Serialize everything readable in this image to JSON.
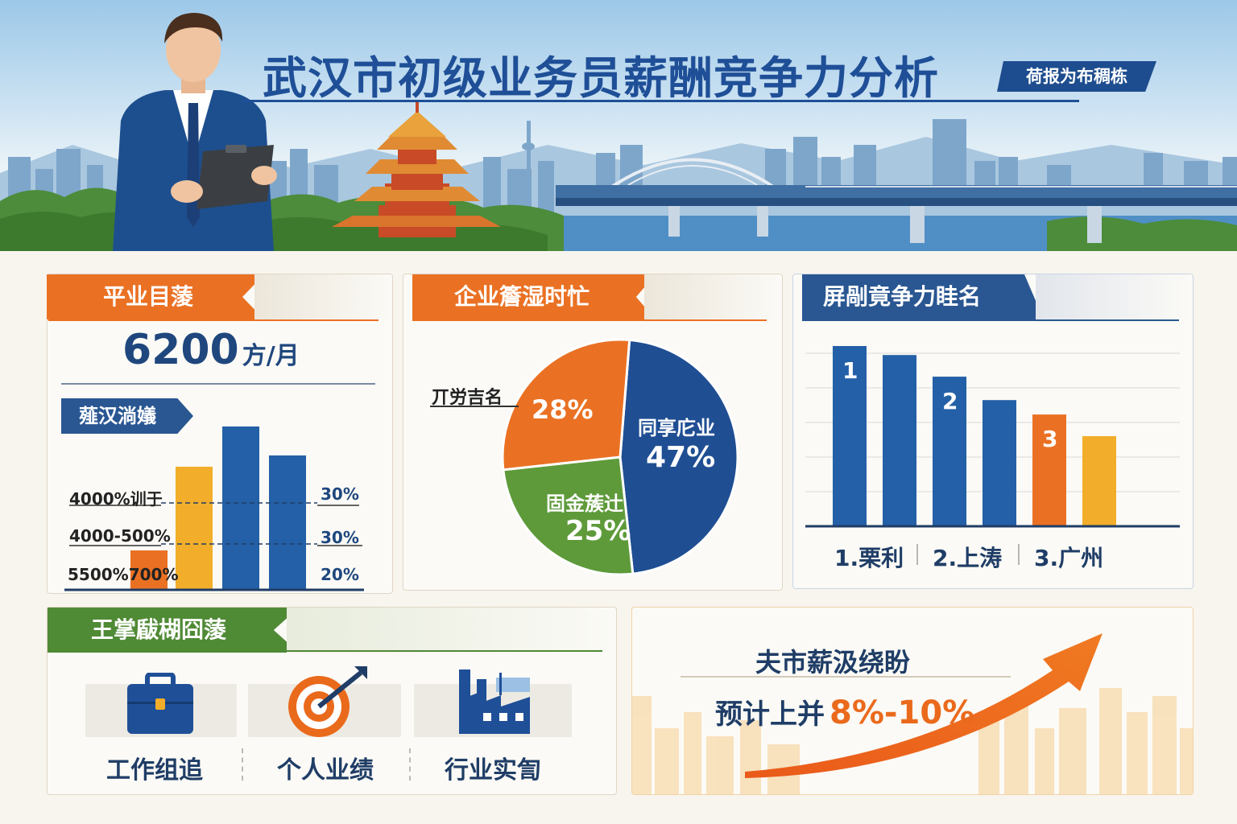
{
  "header": {
    "title": "武汉市初级业务员薪酬竞争力分析",
    "badge": "荷报为布稠栋"
  },
  "salary_card": {
    "title": "平业目蔆",
    "salary_value": "6200",
    "salary_unit": "方/月",
    "section_label": "薤汉淌嬟",
    "rows": [
      {
        "label": "4000%训于",
        "pct": "30%"
      },
      {
        "label": "4000-500%",
        "pct": "30%"
      },
      {
        "label": "5500%700%",
        "pct": "20%"
      }
    ]
  },
  "pie_card": {
    "title": "企业簷湿时忙",
    "slices": [
      {
        "label": "同享庀业",
        "value": "47%",
        "share": 47,
        "color": "#1f4e93"
      },
      {
        "label": "固金蔟辻",
        "value": "25%",
        "share": 25,
        "color": "#5e9a3a"
      },
      {
        "label": "",
        "value": "28%",
        "share": 28,
        "color": "#ea7123"
      }
    ],
    "callout_label": "丌労吉名"
  },
  "rank_card": {
    "title": "屏剮竟争力眭名",
    "bars": [
      {
        "rank_label": "1",
        "value": 100,
        "color": "#2460a7"
      },
      {
        "rank_label": "",
        "value": 95,
        "color": "#2460a7"
      },
      {
        "rank_label": "2",
        "value": 83,
        "color": "#2460a7"
      },
      {
        "rank_label": "",
        "value": 70,
        "color": "#2460a7"
      },
      {
        "rank_label": "3",
        "value": 62,
        "color": "#ea7123"
      },
      {
        "rank_label": "",
        "value": 50,
        "color": "#f2ae2a"
      }
    ],
    "categories": [
      "1.栗利",
      "2.上涛",
      "3.广州"
    ]
  },
  "factors_card": {
    "title": "王掌瞂楜囧蔆",
    "items": [
      {
        "label": "工作组追",
        "icon": "briefcase-icon"
      },
      {
        "label": "个人业绩",
        "icon": "target-icon"
      },
      {
        "label": "行业实訇",
        "icon": "factory-icon"
      }
    ]
  },
  "trend_card": {
    "title": "夫市薪汲绕盼",
    "prefix": "预计上并",
    "highlight": "8%-10%"
  }
}
